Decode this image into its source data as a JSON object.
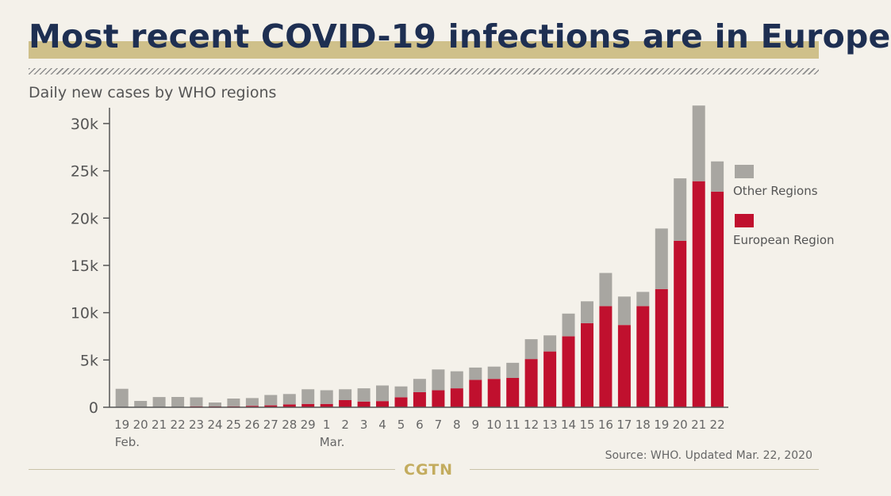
{
  "header": {
    "title": "Most recent COVID-19 infections are in Europe",
    "subtitle": "Daily new cases by WHO regions"
  },
  "footer": {
    "brand": "CGTN",
    "source": "Source: WHO. Updated Mar. 22, 2020"
  },
  "colors": {
    "european": "#c0102e",
    "other": "#a8a6a1",
    "axis": "#555555",
    "title": "#1e2f52",
    "accent": "#cfc08a"
  },
  "chart_data": {
    "type": "bar",
    "stacked": true,
    "categories": [
      "19",
      "20",
      "21",
      "22",
      "23",
      "24",
      "25",
      "26",
      "27",
      "28",
      "29",
      "1",
      "2",
      "3",
      "4",
      "5",
      "6",
      "7",
      "8",
      "9",
      "10",
      "11",
      "12",
      "13",
      "14",
      "15",
      "16",
      "17",
      "18",
      "19",
      "20",
      "21",
      "22"
    ],
    "month_labels": [
      {
        "index": 0,
        "label": "Feb."
      },
      {
        "index": 11,
        "label": "Mar."
      }
    ],
    "series": [
      {
        "name": "European Region",
        "color": "#c0102e",
        "values": [
          50,
          20,
          30,
          40,
          100,
          80,
          100,
          150,
          200,
          300,
          350,
          350,
          750,
          600,
          650,
          1050,
          1600,
          1800,
          2000,
          2900,
          3000,
          3100,
          5100,
          5900,
          7500,
          8900,
          10700,
          8700,
          10700,
          12500,
          17600,
          23900,
          22800
        ]
      },
      {
        "name": "Other Regions",
        "color": "#a8a6a1",
        "values": [
          1900,
          650,
          1050,
          1050,
          950,
          420,
          820,
          820,
          1100,
          1100,
          1550,
          1450,
          1150,
          1400,
          1650,
          1150,
          1400,
          2200,
          1800,
          1300,
          1300,
          1600,
          2100,
          1700,
          2400,
          2300,
          3500,
          3000,
          1500,
          6400,
          6600,
          8000,
          3200
        ]
      }
    ],
    "ylim": [
      0,
      31500
    ],
    "yticks": [
      0,
      5000,
      10000,
      15000,
      20000,
      25000,
      30000
    ],
    "ytick_labels": [
      "0",
      "5k",
      "10k",
      "15k",
      "20k",
      "25k",
      "30k"
    ],
    "legend_position": "right",
    "grid": false
  }
}
